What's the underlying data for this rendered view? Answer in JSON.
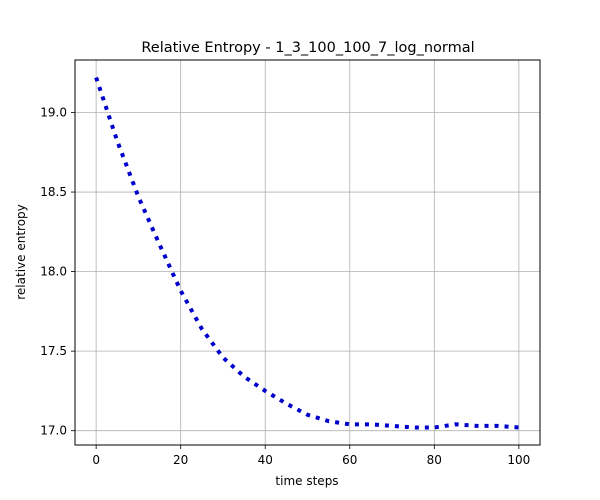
{
  "chart_data": {
    "type": "line",
    "title": "Relative Entropy - 1_3_100_100_7_log_normal",
    "xlabel": "time steps",
    "ylabel": "relative entropy",
    "xlim": [
      -5,
      105
    ],
    "ylim": [
      16.91,
      19.33
    ],
    "xticks": [
      0,
      20,
      40,
      60,
      80,
      100
    ],
    "yticks": [
      17.0,
      17.5,
      18.0,
      18.5,
      19.0
    ],
    "ytick_labels": [
      "17.0",
      "17.5",
      "18.0",
      "18.5",
      "19.0"
    ],
    "grid": true,
    "line_style": "dotted",
    "series": [
      {
        "color": "#0000cc",
        "x": [
          0,
          5,
          10,
          15,
          20,
          25,
          30,
          35,
          40,
          45,
          50,
          55,
          60,
          65,
          70,
          75,
          80,
          85,
          90,
          95,
          100
        ],
        "y": [
          19.22,
          18.82,
          18.47,
          18.17,
          17.88,
          17.64,
          17.46,
          17.34,
          17.25,
          17.17,
          17.1,
          17.06,
          17.04,
          17.04,
          17.03,
          17.02,
          17.02,
          17.04,
          17.03,
          17.03,
          17.02
        ]
      }
    ]
  }
}
